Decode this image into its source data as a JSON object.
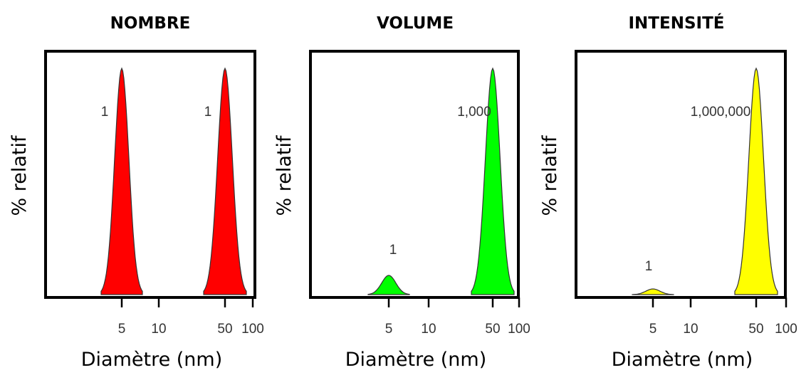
{
  "chart_data": [
    {
      "type": "area",
      "title": "NOMBRE",
      "xlabel": "Diamètre (nm)",
      "ylabel": "% relatif",
      "x_scale": "log",
      "xlim": [
        1,
        100
      ],
      "ylim": [
        0,
        100
      ],
      "xticks": [
        "5",
        "10",
        "50",
        "100"
      ],
      "grid": false,
      "color": "#ff0000",
      "peaks": [
        {
          "x": 5,
          "height": 100,
          "label": "1"
        },
        {
          "x": 50,
          "height": 100,
          "label": "1"
        }
      ]
    },
    {
      "type": "area",
      "title": "VOLUME",
      "xlabel": "Diamètre (nm)",
      "ylabel": "% relatif",
      "x_scale": "log",
      "xlim": [
        1,
        100
      ],
      "ylim": [
        0,
        100
      ],
      "xticks": [
        "5",
        "10",
        "50",
        "100"
      ],
      "grid": false,
      "color": "#00ff00",
      "peaks": [
        {
          "x": 5,
          "height": 8.5,
          "label": "1"
        },
        {
          "x": 50,
          "height": 100,
          "label": "1,000"
        }
      ]
    },
    {
      "type": "area",
      "title": "INTENSITÉ",
      "xlabel": "Diamètre (nm)",
      "ylabel": "% relatif",
      "x_scale": "log",
      "xlim": [
        1,
        100
      ],
      "ylim": [
        0,
        100
      ],
      "xticks": [
        "5",
        "10",
        "50",
        "100"
      ],
      "grid": false,
      "color": "#ffff00",
      "peaks": [
        {
          "x": 5,
          "height": 2.5,
          "label": "1"
        },
        {
          "x": 50,
          "height": 100,
          "label": "1,000,000"
        }
      ]
    }
  ]
}
